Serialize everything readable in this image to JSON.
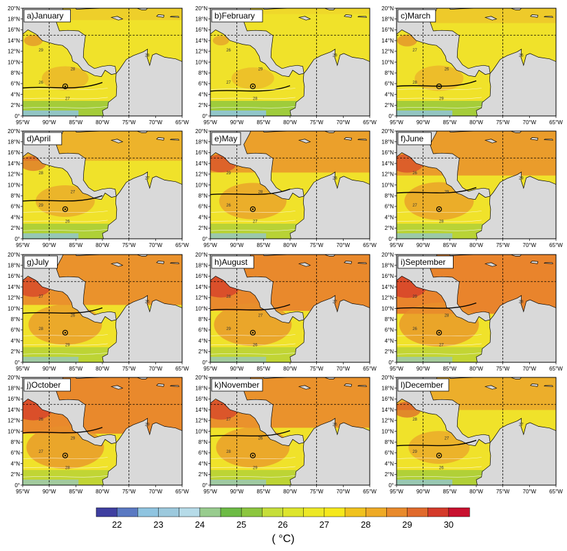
{
  "panels": [
    {
      "label": "a)January",
      "mode": 0.2
    },
    {
      "label": "b)February",
      "mode": 0.1
    },
    {
      "label": "c)March",
      "mode": 0.25
    },
    {
      "label": "d)April",
      "mode": 0.5
    },
    {
      "label": "e)May",
      "mode": 0.7
    },
    {
      "label": "f)June",
      "mode": 0.75
    },
    {
      "label": "g)July",
      "mode": 0.85
    },
    {
      "label": "h)August",
      "mode": 0.95
    },
    {
      "label": "i)September",
      "mode": 1.0
    },
    {
      "label": "j)October",
      "mode": 0.95
    },
    {
      "label": "k)November",
      "mode": 0.85
    },
    {
      "label": "l)December",
      "mode": 0.55
    }
  ],
  "axes": {
    "lat_labels": [
      "0°",
      "2°N",
      "4°N",
      "6°N",
      "8°N",
      "10°N",
      "12°N",
      "14°N",
      "16°N",
      "18°N",
      "20°N"
    ],
    "lon_labels": [
      "95°W",
      "90°W",
      "85°W",
      "80°W",
      "75°W",
      "70°W",
      "65°W"
    ]
  },
  "contour_labels": [
    "26",
    "27",
    "28",
    "29"
  ],
  "colorbar": {
    "ticks": [
      "22",
      "23",
      "24",
      "25",
      "26",
      "27",
      "28",
      "29",
      "30"
    ],
    "colors": [
      "#3f3fa0",
      "#5a79c2",
      "#8fc4e0",
      "#9cc9dd",
      "#b6dbe8",
      "#98cc8e",
      "#6dbb45",
      "#8cc63f",
      "#c6de3a",
      "#dde52c",
      "#ece826",
      "#f5e81c",
      "#f0c21e",
      "#eeaa26",
      "#e88a2c",
      "#e06a2c",
      "#d43a2a",
      "#c8102e"
    ],
    "unit": "( °C)"
  },
  "map_colors": {
    "land": "#d9d9d9",
    "sea_warm": "#e87a2c",
    "sea_mid": "#f0e22a",
    "sea_cool": "#8cc63f",
    "sea_cold": "#8fc4e0"
  }
}
